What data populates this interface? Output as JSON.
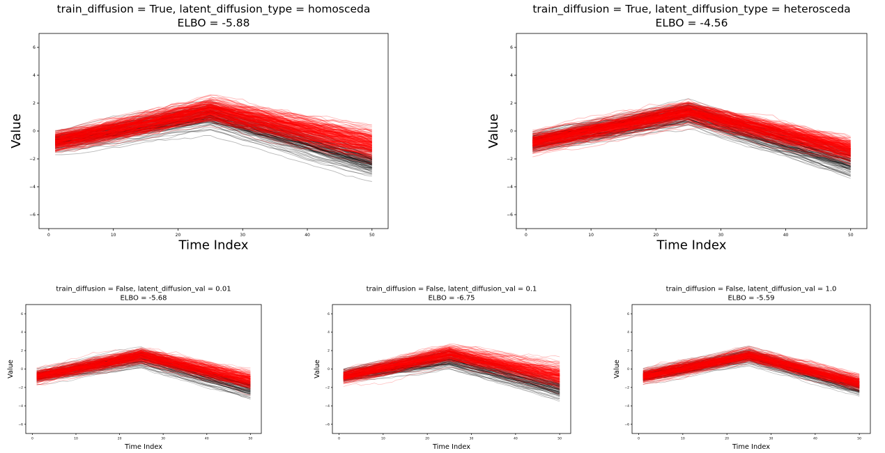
{
  "chart_data": [
    {
      "type": "line",
      "title_line1": "train_diffusion = True, latent_diffusion_type = homosceda",
      "title_line2": "ELBO = -5.88",
      "xlabel": "Time Index",
      "ylabel": "Value",
      "xlim": [
        -1.5,
        52.5
      ],
      "ylim": [
        -7,
        7
      ],
      "xticks": [
        0,
        10,
        20,
        30,
        40,
        50
      ],
      "yticks": [
        -6,
        -4,
        -2,
        0,
        2,
        4,
        6
      ],
      "grid": false,
      "series": [
        {
          "color": "#000000",
          "count": 100,
          "mean": {
            "x": [
              1,
              25,
              50
            ],
            "y": [
              -0.8,
              1.1,
              -2.3
            ]
          },
          "spread": [
            0.35,
            0.5,
            0.45
          ]
        },
        {
          "color": "#ff0000",
          "count": 200,
          "mean": {
            "x": [
              1,
              25,
              50
            ],
            "y": [
              -0.8,
              1.5,
              -1.0
            ]
          },
          "spread": [
            0.3,
            0.35,
            0.5
          ]
        }
      ]
    },
    {
      "type": "line",
      "title_line1": "train_diffusion = True, latent_diffusion_type = heterosceda",
      "title_line2": "ELBO = -4.56",
      "xlabel": "Time Index",
      "ylabel": "Value",
      "xlim": [
        -1.5,
        52.5
      ],
      "ylim": [
        -7,
        7
      ],
      "xticks": [
        0,
        10,
        20,
        30,
        40,
        50
      ],
      "yticks": [
        -6,
        -4,
        -2,
        0,
        2,
        4,
        6
      ],
      "grid": false,
      "series": [
        {
          "color": "#000000",
          "count": 100,
          "mean": {
            "x": [
              1,
              25,
              50
            ],
            "y": [
              -0.8,
              1.3,
              -2.2
            ]
          },
          "spread": [
            0.3,
            0.45,
            0.45
          ]
        },
        {
          "color": "#ff0000",
          "count": 200,
          "mean": {
            "x": [
              1,
              25,
              50
            ],
            "y": [
              -0.8,
              1.4,
              -1.3
            ]
          },
          "spread": [
            0.3,
            0.3,
            0.35
          ]
        }
      ]
    },
    {
      "type": "line",
      "title_line1": "train_diffusion = False, latent_diffusion_val = 0.01",
      "title_line2": "ELBO = -5.68",
      "xlabel": "Time Index",
      "ylabel": "Value",
      "xlim": [
        -1.5,
        52.5
      ],
      "ylim": [
        -7,
        7
      ],
      "xticks": [
        0,
        10,
        20,
        30,
        40,
        50
      ],
      "yticks": [
        -6,
        -4,
        -2,
        0,
        2,
        4,
        6
      ],
      "grid": false,
      "series": [
        {
          "color": "#000000",
          "count": 100,
          "mean": {
            "x": [
              1,
              25,
              50
            ],
            "y": [
              -0.8,
              1.2,
              -2.2
            ]
          },
          "spread": [
            0.3,
            0.5,
            0.45
          ]
        },
        {
          "color": "#ff0000",
          "count": 200,
          "mean": {
            "x": [
              1,
              25,
              50
            ],
            "y": [
              -0.8,
              1.5,
              -1.2
            ]
          },
          "spread": [
            0.3,
            0.35,
            0.45
          ]
        }
      ]
    },
    {
      "type": "line",
      "title_line1": "train_diffusion = False, latent_diffusion_val = 0.1",
      "title_line2": "ELBO = -6.75",
      "xlabel": "Time Index",
      "ylabel": "Value",
      "xlim": [
        -1.5,
        52.5
      ],
      "ylim": [
        -7,
        7
      ],
      "xticks": [
        0,
        10,
        20,
        30,
        40,
        50
      ],
      "yticks": [
        -6,
        -4,
        -2,
        0,
        2,
        4,
        6
      ],
      "grid": false,
      "series": [
        {
          "color": "#000000",
          "count": 100,
          "mean": {
            "x": [
              1,
              25,
              50
            ],
            "y": [
              -0.8,
              1.1,
              -2.2
            ]
          },
          "spread": [
            0.3,
            0.5,
            0.45
          ]
        },
        {
          "color": "#ff0000",
          "count": 200,
          "mean": {
            "x": [
              1,
              25,
              50
            ],
            "y": [
              -0.8,
              1.7,
              -0.7
            ]
          },
          "spread": [
            0.3,
            0.4,
            0.6
          ]
        }
      ]
    },
    {
      "type": "line",
      "title_line1": "train_diffusion = False, latent_diffusion_val = 1.0",
      "title_line2": "ELBO = -5.59",
      "xlabel": "Time Index",
      "ylabel": "Value",
      "xlim": [
        -1.5,
        52.5
      ],
      "ylim": [
        -7,
        7
      ],
      "xticks": [
        0,
        10,
        20,
        30,
        40,
        50
      ],
      "yticks": [
        -6,
        -4,
        -2,
        0,
        2,
        4,
        6
      ],
      "grid": false,
      "series": [
        {
          "color": "#000000",
          "count": 100,
          "mean": {
            "x": [
              1,
              25,
              50
            ],
            "y": [
              -0.8,
              1.4,
              -2.0
            ]
          },
          "spread": [
            0.3,
            0.45,
            0.45
          ]
        },
        {
          "color": "#ff0000",
          "count": 200,
          "mean": {
            "x": [
              1,
              25,
              50
            ],
            "y": [
              -0.8,
              1.5,
              -1.5
            ]
          },
          "spread": [
            0.3,
            0.3,
            0.35
          ]
        }
      ]
    }
  ]
}
